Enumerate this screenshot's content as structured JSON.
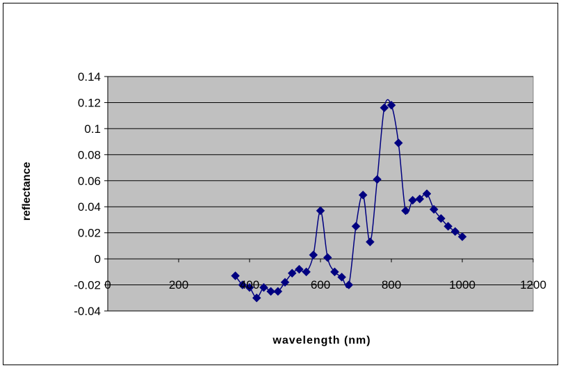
{
  "chart_data": {
    "type": "scatter",
    "title": "",
    "xlabel": "wavelength (nm)",
    "ylabel": "reflectance",
    "xlim": [
      0,
      1200
    ],
    "ylim": [
      -0.04,
      0.14
    ],
    "x_ticks": [
      0,
      200,
      400,
      600,
      800,
      1000,
      1200
    ],
    "x_tick_labels": [
      "0",
      "200",
      "400",
      "600",
      "800",
      "1000",
      "1200"
    ],
    "y_ticks": [
      -0.04,
      -0.02,
      0,
      0.02,
      0.04,
      0.06,
      0.08,
      0.1,
      0.12,
      0.14
    ],
    "y_tick_labels": [
      "-0.04",
      "-0.02",
      "0",
      "0.02",
      "0.04",
      "0.06",
      "0.08",
      "0.1",
      "0.12",
      "0.14"
    ],
    "grid": "horizontal",
    "legend": "none",
    "smoothed_line": true,
    "colors": {
      "series": "#000080",
      "plot_background": "#c0c0c0",
      "grid": "#000000"
    },
    "series": [
      {
        "x": [
          360,
          380,
          400,
          420,
          440,
          460,
          480,
          500,
          520,
          540,
          560,
          580,
          600,
          620,
          640,
          660,
          680,
          700,
          720,
          740,
          760,
          780,
          800,
          820,
          840,
          860,
          880,
          900,
          920,
          940,
          960,
          980,
          1000
        ],
        "y": [
          -0.013,
          -0.02,
          -0.022,
          -0.03,
          -0.022,
          -0.025,
          -0.025,
          -0.018,
          -0.011,
          -0.008,
          -0.01,
          0.003,
          0.037,
          0.001,
          -0.01,
          -0.014,
          -0.02,
          0.025,
          0.049,
          0.013,
          0.061,
          0.116,
          0.118,
          0.089,
          0.037,
          0.045,
          0.046,
          0.05,
          0.038,
          0.031,
          0.025,
          0.021,
          0.017
        ]
      }
    ]
  }
}
